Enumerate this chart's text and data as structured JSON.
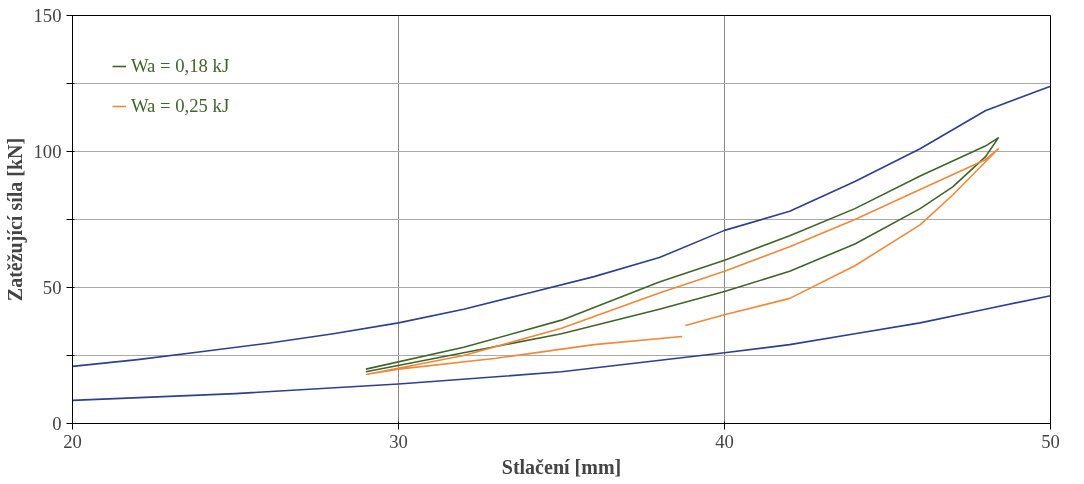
{
  "chart_data": {
    "type": "line",
    "xlabel": "Stlačení [mm]",
    "ylabel": "Zatěžující síla [kN]",
    "xlim": [
      20,
      50
    ],
    "ylim": [
      0,
      150
    ],
    "xticks": [
      20,
      30,
      40,
      50
    ],
    "yticks": [
      0,
      {
        "value": 25,
        "label": null
      },
      50,
      {
        "value": 75,
        "label": null
      },
      100,
      {
        "value": 125,
        "label": null
      },
      150
    ],
    "grid": true,
    "legend": "top left",
    "marker": "none",
    "line_style": "solid",
    "series": [
      {
        "color": "#2f3f8f",
        "x": [
          20,
          22,
          24,
          26,
          28,
          30,
          32,
          34,
          36,
          38,
          40,
          42,
          44,
          46,
          48,
          50
        ],
        "values": [
          21,
          23.5,
          26.5,
          29.5,
          33,
          37,
          42,
          48,
          54,
          61,
          71,
          78,
          89,
          101,
          115,
          124
        ]
      },
      {
        "color": "#2f3f8f",
        "x": [
          20,
          25,
          30,
          35,
          40,
          42,
          44,
          46,
          48,
          50
        ],
        "values": [
          8.5,
          11,
          14.5,
          19,
          26,
          29,
          33,
          37,
          42,
          47
        ]
      },
      {
        "name": "Wa = 0,18 kJ",
        "color": "#41642a",
        "x": [
          29,
          32,
          35,
          38,
          40,
          42,
          44,
          46,
          48,
          48.4,
          48,
          47,
          46,
          44,
          42,
          40,
          38,
          35,
          32,
          29
        ],
        "values": [
          20,
          28,
          38,
          52,
          60,
          69,
          79,
          91,
          102,
          105,
          98,
          87,
          79,
          66,
          56,
          48.5,
          42,
          33,
          26,
          19
        ]
      },
      {
        "name": "Wa = 0,25 kJ",
        "color": "#f0883a",
        "x": [
          29,
          32,
          35,
          38,
          40,
          42,
          44,
          46,
          48,
          48.4,
          47,
          46,
          44,
          42,
          40,
          38.8,
          null,
          38.7,
          36,
          33,
          30,
          29
        ],
        "values": [
          18,
          25,
          35,
          48,
          56,
          65,
          75,
          86,
          97,
          101,
          84,
          73,
          58,
          46,
          40,
          36,
          null,
          32,
          29,
          24,
          20,
          18
        ]
      }
    ]
  }
}
